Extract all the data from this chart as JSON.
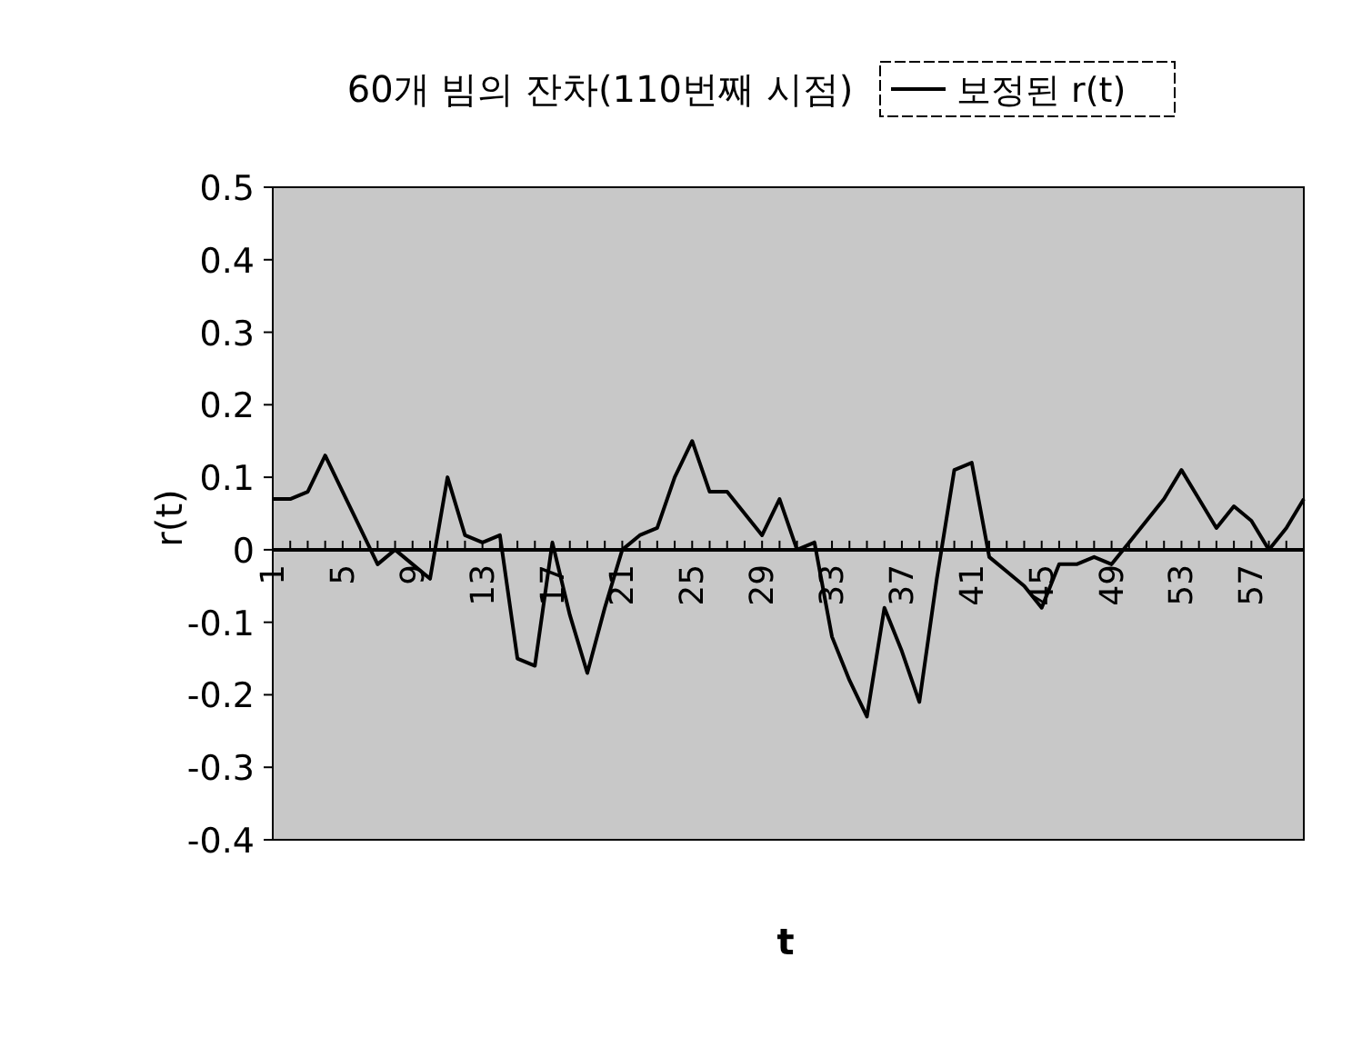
{
  "chart_data": {
    "type": "line",
    "title": "60개 빔의 잔차(110번째 시점)",
    "xlabel": "t",
    "ylabel": "r(t)",
    "categories": [
      "1",
      null,
      null,
      null,
      "5",
      null,
      null,
      null,
      "9",
      null,
      null,
      null,
      "13",
      null,
      null,
      null,
      "17",
      null,
      null,
      null,
      "21",
      null,
      null,
      null,
      "25",
      null,
      null,
      null,
      "29",
      null,
      null,
      null,
      "33",
      null,
      null,
      null,
      "37",
      null,
      null,
      null,
      "41",
      null,
      null,
      null,
      "45",
      null,
      null,
      null,
      "49",
      null,
      null,
      null,
      "53",
      null,
      null,
      null,
      "57",
      null,
      null,
      null
    ],
    "series": [
      {
        "name": "보정된 r(t)",
        "color": "#000000",
        "values": [
          0.07,
          0.07,
          0.08,
          0.13,
          0.08,
          0.03,
          -0.02,
          0.0,
          -0.02,
          -0.04,
          0.1,
          0.02,
          0.01,
          0.02,
          -0.15,
          -0.16,
          0.01,
          -0.09,
          -0.17,
          -0.08,
          0.0,
          0.02,
          0.03,
          0.1,
          0.15,
          0.08,
          0.08,
          0.05,
          0.02,
          0.07,
          0.0,
          0.01,
          -0.12,
          -0.18,
          -0.23,
          -0.08,
          -0.14,
          -0.21,
          -0.04,
          0.11,
          0.12,
          -0.01,
          -0.03,
          -0.05,
          -0.08,
          -0.02,
          -0.02,
          -0.01,
          -0.02,
          0.01,
          0.04,
          0.07,
          0.11,
          0.07,
          0.03,
          0.06,
          0.04,
          0.0,
          0.03,
          0.07
        ]
      }
    ],
    "ylim": [
      -0.4,
      0.5
    ],
    "yticks": [
      0.5,
      0.4,
      0.3,
      0.2,
      0.1,
      0,
      -0.1,
      -0.2,
      -0.3,
      -0.4
    ],
    "grid": false,
    "legend": "top right"
  }
}
